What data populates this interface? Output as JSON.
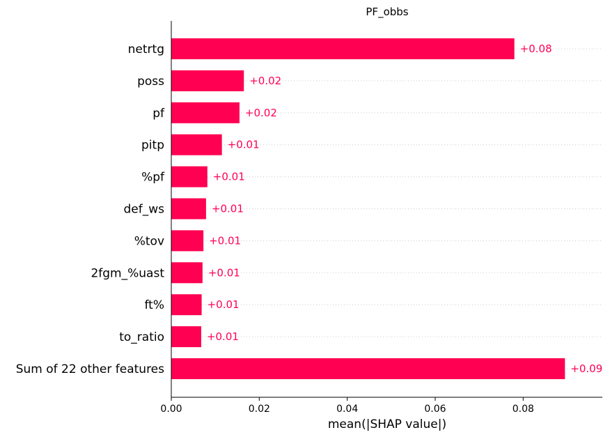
{
  "chart_data": {
    "type": "bar",
    "orientation": "horizontal",
    "title": "PF_obbs",
    "xlabel": "mean(|SHAP value|)",
    "ylabel": "",
    "xlim": [
      0,
      0.098
    ],
    "xticks": [
      0.0,
      0.02,
      0.04,
      0.06,
      0.08
    ],
    "xtick_labels": [
      "0.00",
      "0.02",
      "0.04",
      "0.06",
      "0.08"
    ],
    "bar_color": "#ff0052",
    "label_color": "#ff0052",
    "gridlines": "dotted-per-bar",
    "bars": [
      {
        "feature": "netrtg",
        "value": 0.078,
        "label": "+0.08"
      },
      {
        "feature": "poss",
        "value": 0.0165,
        "label": "+0.02"
      },
      {
        "feature": "pf",
        "value": 0.0155,
        "label": "+0.02"
      },
      {
        "feature": "pitp",
        "value": 0.0115,
        "label": "+0.01"
      },
      {
        "feature": "%pf",
        "value": 0.0082,
        "label": "+0.01"
      },
      {
        "feature": "def_ws",
        "value": 0.0079,
        "label": "+0.01"
      },
      {
        "feature": "%tov",
        "value": 0.0073,
        "label": "+0.01"
      },
      {
        "feature": "2fgm_%uast",
        "value": 0.0071,
        "label": "+0.01"
      },
      {
        "feature": "ft%",
        "value": 0.0069,
        "label": "+0.01"
      },
      {
        "feature": "to_ratio",
        "value": 0.0068,
        "label": "+0.01"
      },
      {
        "feature": "Sum of 22 other features",
        "value": 0.0895,
        "label": "+0.09"
      }
    ]
  }
}
